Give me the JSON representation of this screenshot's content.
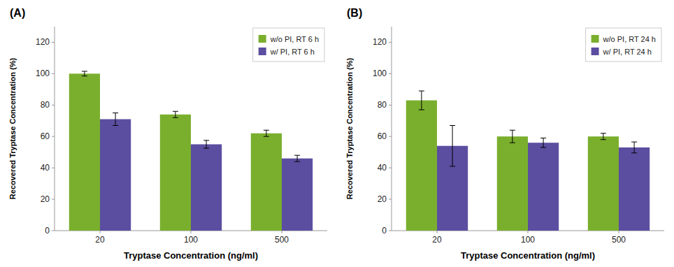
{
  "chart_data": [
    {
      "type": "bar",
      "title": "(A)",
      "categories": [
        "20",
        "100",
        "500"
      ],
      "xlabel": "Tryptase Concentration (ng/ml)",
      "ylabel": "Recovered Tryptase Concentration (%)",
      "ylim": [
        0,
        130
      ],
      "yticks": [
        0,
        20,
        40,
        60,
        80,
        100,
        120
      ],
      "legend": "upper right",
      "grid": false,
      "series": [
        {
          "name": "w/o PI, RT 6 h",
          "color": "#7aaf2e",
          "values": [
            100,
            74,
            62
          ],
          "errors": [
            1.5,
            2.0,
            2.0
          ]
        },
        {
          "name": "w/ PI, RT 6 h",
          "color": "#5b4ea0",
          "values": [
            71,
            55,
            46
          ],
          "errors": [
            4.0,
            2.5,
            2.0
          ]
        }
      ]
    },
    {
      "type": "bar",
      "title": "(B)",
      "categories": [
        "20",
        "100",
        "500"
      ],
      "xlabel": "Tryptase Concentration (ng/ml)",
      "ylabel": "Recovered Tryptase Concentration (%)",
      "ylim": [
        0,
        130
      ],
      "yticks": [
        0,
        20,
        40,
        60,
        80,
        100,
        120
      ],
      "legend": "upper right",
      "grid": false,
      "series": [
        {
          "name": "w/o PI, RT 24 h",
          "color": "#7aaf2e",
          "values": [
            83,
            60,
            60
          ],
          "errors": [
            6.0,
            4.0,
            2.0
          ]
        },
        {
          "name": "w/ PI, RT 24 h",
          "color": "#5b4ea0",
          "values": [
            54,
            56,
            53
          ],
          "errors": [
            13.0,
            3.0,
            3.5
          ]
        }
      ]
    }
  ]
}
